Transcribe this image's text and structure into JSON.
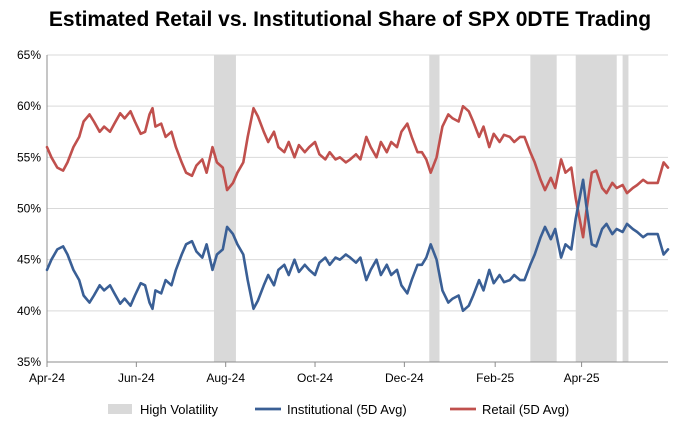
{
  "chart_data": {
    "type": "line",
    "title": "Estimated Retail vs. Institutional Share of SPX 0DTE Trading",
    "xlabel": "",
    "ylabel": "",
    "ylim": [
      0.35,
      0.65
    ],
    "yticks": [
      "35%",
      "40%",
      "45%",
      "50%",
      "55%",
      "60%",
      "65%"
    ],
    "xtick_labels": [
      "Apr-24",
      "Jun-24",
      "Aug-24",
      "Oct-24",
      "Dec-24",
      "Feb-25",
      "Apr-25"
    ],
    "xtick_dates": [
      "2024-04-01",
      "2024-06-01",
      "2024-08-01",
      "2024-10-01",
      "2024-12-01",
      "2025-02-01",
      "2025-04-01"
    ],
    "xlim": [
      "2024-04-01",
      "2025-05-30"
    ],
    "grid": "horizontal",
    "legend_position": "bottom",
    "high_volatility_periods": [
      [
        "2024-07-24",
        "2024-08-08"
      ],
      [
        "2024-12-18",
        "2024-12-25"
      ],
      [
        "2025-02-25",
        "2025-03-15"
      ],
      [
        "2025-03-28",
        "2025-04-25"
      ],
      [
        "2025-04-29",
        "2025-05-03"
      ]
    ],
    "legend": [
      {
        "label": "High Volatility",
        "color": "#d9d9d9",
        "kind": "area"
      },
      {
        "label": "Institutional (5D Avg)",
        "color": "#3a5f95",
        "kind": "line"
      },
      {
        "label": "Retail (5D Avg)",
        "color": "#c0504d",
        "kind": "line"
      }
    ],
    "series": [
      {
        "name": "Retail (5D Avg)",
        "color": "#c0504d",
        "points": [
          [
            "2024-04-01",
            0.56
          ],
          [
            "2024-04-04",
            0.55
          ],
          [
            "2024-04-08",
            0.54
          ],
          [
            "2024-04-12",
            0.537
          ],
          [
            "2024-04-15",
            0.545
          ],
          [
            "2024-04-19",
            0.56
          ],
          [
            "2024-04-23",
            0.57
          ],
          [
            "2024-04-26",
            0.585
          ],
          [
            "2024-04-30",
            0.592
          ],
          [
            "2024-05-03",
            0.585
          ],
          [
            "2024-05-07",
            0.575
          ],
          [
            "2024-05-10",
            0.58
          ],
          [
            "2024-05-14",
            0.575
          ],
          [
            "2024-05-17",
            0.583
          ],
          [
            "2024-05-21",
            0.593
          ],
          [
            "2024-05-24",
            0.588
          ],
          [
            "2024-05-28",
            0.595
          ],
          [
            "2024-05-31",
            0.585
          ],
          [
            "2024-06-04",
            0.573
          ],
          [
            "2024-06-07",
            0.575
          ],
          [
            "2024-06-10",
            0.592
          ],
          [
            "2024-06-12",
            0.598
          ],
          [
            "2024-06-14",
            0.58
          ],
          [
            "2024-06-18",
            0.583
          ],
          [
            "2024-06-21",
            0.57
          ],
          [
            "2024-06-25",
            0.575
          ],
          [
            "2024-06-28",
            0.56
          ],
          [
            "2024-07-02",
            0.545
          ],
          [
            "2024-07-05",
            0.535
          ],
          [
            "2024-07-09",
            0.532
          ],
          [
            "2024-07-12",
            0.542
          ],
          [
            "2024-07-16",
            0.548
          ],
          [
            "2024-07-19",
            0.535
          ],
          [
            "2024-07-23",
            0.56
          ],
          [
            "2024-07-26",
            0.545
          ],
          [
            "2024-07-30",
            0.54
          ],
          [
            "2024-08-02",
            0.518
          ],
          [
            "2024-08-06",
            0.525
          ],
          [
            "2024-08-09",
            0.535
          ],
          [
            "2024-08-13",
            0.545
          ],
          [
            "2024-08-16",
            0.57
          ],
          [
            "2024-08-20",
            0.598
          ],
          [
            "2024-08-23",
            0.59
          ],
          [
            "2024-08-27",
            0.575
          ],
          [
            "2024-08-30",
            0.565
          ],
          [
            "2024-09-03",
            0.575
          ],
          [
            "2024-09-06",
            0.56
          ],
          [
            "2024-09-10",
            0.555
          ],
          [
            "2024-09-13",
            0.565
          ],
          [
            "2024-09-17",
            0.55
          ],
          [
            "2024-09-20",
            0.562
          ],
          [
            "2024-09-24",
            0.555
          ],
          [
            "2024-09-27",
            0.56
          ],
          [
            "2024-10-01",
            0.565
          ],
          [
            "2024-10-04",
            0.553
          ],
          [
            "2024-10-08",
            0.548
          ],
          [
            "2024-10-11",
            0.555
          ],
          [
            "2024-10-15",
            0.548
          ],
          [
            "2024-10-18",
            0.55
          ],
          [
            "2024-10-22",
            0.545
          ],
          [
            "2024-10-25",
            0.548
          ],
          [
            "2024-10-29",
            0.553
          ],
          [
            "2024-11-01",
            0.548
          ],
          [
            "2024-11-05",
            0.57
          ],
          [
            "2024-11-08",
            0.56
          ],
          [
            "2024-11-12",
            0.55
          ],
          [
            "2024-11-15",
            0.565
          ],
          [
            "2024-11-19",
            0.555
          ],
          [
            "2024-11-22",
            0.565
          ],
          [
            "2024-11-26",
            0.56
          ],
          [
            "2024-11-29",
            0.575
          ],
          [
            "2024-12-03",
            0.583
          ],
          [
            "2024-12-06",
            0.57
          ],
          [
            "2024-12-10",
            0.555
          ],
          [
            "2024-12-13",
            0.555
          ],
          [
            "2024-12-16",
            0.548
          ],
          [
            "2024-12-19",
            0.535
          ],
          [
            "2024-12-23",
            0.55
          ],
          [
            "2024-12-27",
            0.58
          ],
          [
            "2024-12-31",
            0.592
          ],
          [
            "2025-01-03",
            0.588
          ],
          [
            "2025-01-07",
            0.585
          ],
          [
            "2025-01-10",
            0.6
          ],
          [
            "2025-01-14",
            0.595
          ],
          [
            "2025-01-17",
            0.585
          ],
          [
            "2025-01-21",
            0.57
          ],
          [
            "2025-01-24",
            0.58
          ],
          [
            "2025-01-28",
            0.56
          ],
          [
            "2025-01-31",
            0.573
          ],
          [
            "2025-02-04",
            0.565
          ],
          [
            "2025-02-07",
            0.572
          ],
          [
            "2025-02-11",
            0.57
          ],
          [
            "2025-02-14",
            0.565
          ],
          [
            "2025-02-18",
            0.57
          ],
          [
            "2025-02-21",
            0.57
          ],
          [
            "2025-02-25",
            0.555
          ],
          [
            "2025-02-28",
            0.545
          ],
          [
            "2025-03-04",
            0.528
          ],
          [
            "2025-03-07",
            0.518
          ],
          [
            "2025-03-11",
            0.53
          ],
          [
            "2025-03-14",
            0.52
          ],
          [
            "2025-03-18",
            0.548
          ],
          [
            "2025-03-21",
            0.535
          ],
          [
            "2025-03-25",
            0.54
          ],
          [
            "2025-03-28",
            0.51
          ],
          [
            "2025-04-02",
            0.472
          ],
          [
            "2025-04-04",
            0.495
          ],
          [
            "2025-04-08",
            0.535
          ],
          [
            "2025-04-11",
            0.537
          ],
          [
            "2025-04-15",
            0.52
          ],
          [
            "2025-04-18",
            0.515
          ],
          [
            "2025-04-22",
            0.525
          ],
          [
            "2025-04-25",
            0.52
          ],
          [
            "2025-04-29",
            0.523
          ],
          [
            "2025-05-02",
            0.515
          ],
          [
            "2025-05-06",
            0.52
          ],
          [
            "2025-05-09",
            0.523
          ],
          [
            "2025-05-13",
            0.528
          ],
          [
            "2025-05-16",
            0.525
          ],
          [
            "2025-05-20",
            0.525
          ],
          [
            "2025-05-23",
            0.525
          ],
          [
            "2025-05-27",
            0.545
          ],
          [
            "2025-05-30",
            0.54
          ]
        ]
      },
      {
        "name": "Institutional (5D Avg)",
        "color": "#3a5f95",
        "points": [
          [
            "2024-04-01",
            0.44
          ],
          [
            "2024-04-04",
            0.45
          ],
          [
            "2024-04-08",
            0.46
          ],
          [
            "2024-04-12",
            0.463
          ],
          [
            "2024-04-15",
            0.455
          ],
          [
            "2024-04-19",
            0.44
          ],
          [
            "2024-04-23",
            0.43
          ],
          [
            "2024-04-26",
            0.415
          ],
          [
            "2024-04-30",
            0.408
          ],
          [
            "2024-05-03",
            0.415
          ],
          [
            "2024-05-07",
            0.425
          ],
          [
            "2024-05-10",
            0.42
          ],
          [
            "2024-05-14",
            0.425
          ],
          [
            "2024-05-17",
            0.417
          ],
          [
            "2024-05-21",
            0.407
          ],
          [
            "2024-05-24",
            0.412
          ],
          [
            "2024-05-28",
            0.405
          ],
          [
            "2024-05-31",
            0.415
          ],
          [
            "2024-06-04",
            0.427
          ],
          [
            "2024-06-07",
            0.425
          ],
          [
            "2024-06-10",
            0.408
          ],
          [
            "2024-06-12",
            0.402
          ],
          [
            "2024-06-14",
            0.42
          ],
          [
            "2024-06-18",
            0.417
          ],
          [
            "2024-06-21",
            0.43
          ],
          [
            "2024-06-25",
            0.425
          ],
          [
            "2024-06-28",
            0.44
          ],
          [
            "2024-07-02",
            0.455
          ],
          [
            "2024-07-05",
            0.465
          ],
          [
            "2024-07-09",
            0.468
          ],
          [
            "2024-07-12",
            0.458
          ],
          [
            "2024-07-16",
            0.452
          ],
          [
            "2024-07-19",
            0.465
          ],
          [
            "2024-07-23",
            0.44
          ],
          [
            "2024-07-26",
            0.455
          ],
          [
            "2024-07-30",
            0.46
          ],
          [
            "2024-08-02",
            0.482
          ],
          [
            "2024-08-06",
            0.475
          ],
          [
            "2024-08-09",
            0.465
          ],
          [
            "2024-08-13",
            0.455
          ],
          [
            "2024-08-16",
            0.43
          ],
          [
            "2024-08-20",
            0.402
          ],
          [
            "2024-08-23",
            0.41
          ],
          [
            "2024-08-27",
            0.425
          ],
          [
            "2024-08-30",
            0.435
          ],
          [
            "2024-09-03",
            0.425
          ],
          [
            "2024-09-06",
            0.44
          ],
          [
            "2024-09-10",
            0.445
          ],
          [
            "2024-09-13",
            0.435
          ],
          [
            "2024-09-17",
            0.45
          ],
          [
            "2024-09-20",
            0.438
          ],
          [
            "2024-09-24",
            0.445
          ],
          [
            "2024-09-27",
            0.44
          ],
          [
            "2024-10-01",
            0.435
          ],
          [
            "2024-10-04",
            0.447
          ],
          [
            "2024-10-08",
            0.452
          ],
          [
            "2024-10-11",
            0.445
          ],
          [
            "2024-10-15",
            0.452
          ],
          [
            "2024-10-18",
            0.45
          ],
          [
            "2024-10-22",
            0.455
          ],
          [
            "2024-10-25",
            0.452
          ],
          [
            "2024-10-29",
            0.447
          ],
          [
            "2024-11-01",
            0.452
          ],
          [
            "2024-11-05",
            0.43
          ],
          [
            "2024-11-08",
            0.44
          ],
          [
            "2024-11-12",
            0.45
          ],
          [
            "2024-11-15",
            0.435
          ],
          [
            "2024-11-19",
            0.445
          ],
          [
            "2024-11-22",
            0.435
          ],
          [
            "2024-11-26",
            0.44
          ],
          [
            "2024-11-29",
            0.425
          ],
          [
            "2024-12-03",
            0.417
          ],
          [
            "2024-12-06",
            0.43
          ],
          [
            "2024-12-10",
            0.445
          ],
          [
            "2024-12-13",
            0.445
          ],
          [
            "2024-12-16",
            0.452
          ],
          [
            "2024-12-19",
            0.465
          ],
          [
            "2024-12-23",
            0.45
          ],
          [
            "2024-12-27",
            0.42
          ],
          [
            "2024-12-31",
            0.408
          ],
          [
            "2025-01-03",
            0.412
          ],
          [
            "2025-01-07",
            0.415
          ],
          [
            "2025-01-10",
            0.4
          ],
          [
            "2025-01-14",
            0.405
          ],
          [
            "2025-01-17",
            0.415
          ],
          [
            "2025-01-21",
            0.43
          ],
          [
            "2025-01-24",
            0.42
          ],
          [
            "2025-01-28",
            0.44
          ],
          [
            "2025-01-31",
            0.427
          ],
          [
            "2025-02-04",
            0.435
          ],
          [
            "2025-02-07",
            0.428
          ],
          [
            "2025-02-11",
            0.43
          ],
          [
            "2025-02-14",
            0.435
          ],
          [
            "2025-02-18",
            0.43
          ],
          [
            "2025-02-21",
            0.43
          ],
          [
            "2025-02-25",
            0.445
          ],
          [
            "2025-02-28",
            0.455
          ],
          [
            "2025-03-04",
            0.472
          ],
          [
            "2025-03-07",
            0.482
          ],
          [
            "2025-03-11",
            0.47
          ],
          [
            "2025-03-14",
            0.48
          ],
          [
            "2025-03-18",
            0.452
          ],
          [
            "2025-03-21",
            0.465
          ],
          [
            "2025-03-25",
            0.46
          ],
          [
            "2025-03-28",
            0.49
          ],
          [
            "2025-04-02",
            0.528
          ],
          [
            "2025-04-04",
            0.505
          ],
          [
            "2025-04-08",
            0.465
          ],
          [
            "2025-04-11",
            0.463
          ],
          [
            "2025-04-15",
            0.48
          ],
          [
            "2025-04-18",
            0.485
          ],
          [
            "2025-04-22",
            0.475
          ],
          [
            "2025-04-25",
            0.48
          ],
          [
            "2025-04-29",
            0.477
          ],
          [
            "2025-05-02",
            0.485
          ],
          [
            "2025-05-06",
            0.48
          ],
          [
            "2025-05-09",
            0.477
          ],
          [
            "2025-05-13",
            0.472
          ],
          [
            "2025-05-16",
            0.475
          ],
          [
            "2025-05-20",
            0.475
          ],
          [
            "2025-05-23",
            0.475
          ],
          [
            "2025-05-27",
            0.455
          ],
          [
            "2025-05-30",
            0.46
          ]
        ]
      }
    ]
  }
}
